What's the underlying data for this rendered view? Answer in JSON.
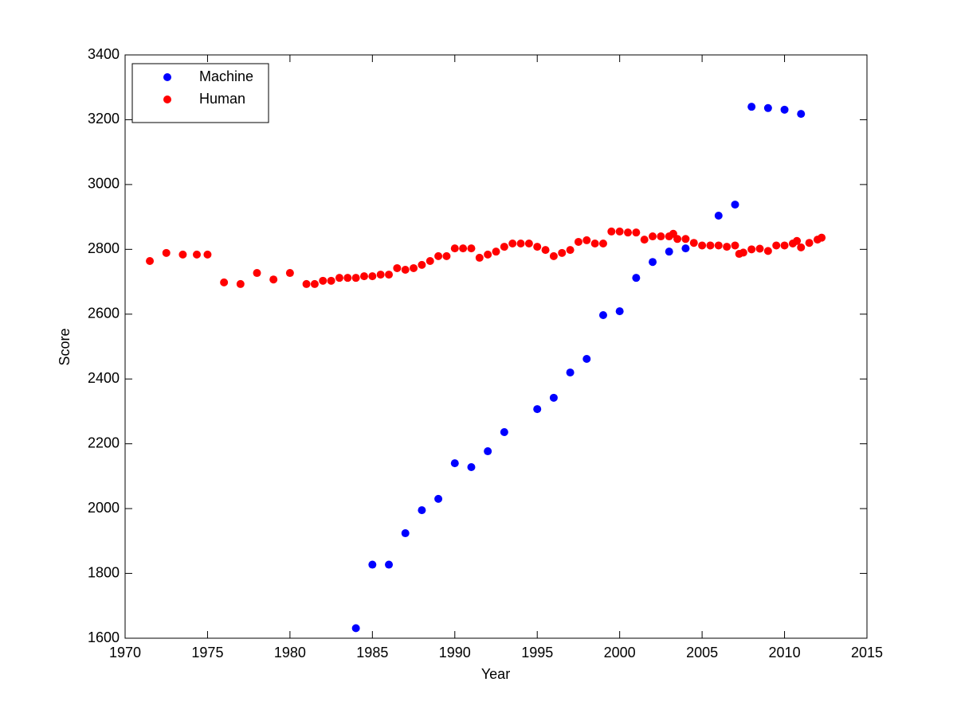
{
  "chart_data": {
    "type": "scatter",
    "xlabel": "Year",
    "ylabel": "Score",
    "xlim": [
      1970,
      2015
    ],
    "xticks": [
      1970,
      1975,
      1980,
      1985,
      1990,
      1995,
      2000,
      2005,
      2010,
      2015
    ],
    "ylim": [
      1600,
      3400
    ],
    "yticks": [
      1600,
      1800,
      2000,
      2200,
      2400,
      2600,
      2800,
      3000,
      3200,
      3400
    ],
    "legend": "upper left",
    "series": [
      {
        "name": "Machine",
        "color": "#0000ff",
        "x": [
          1984,
          1985,
          1986,
          1987,
          1988,
          1989,
          1990,
          1991,
          1992,
          1993,
          1995,
          1996,
          1997,
          1998,
          1999,
          2000,
          2001,
          2002,
          2003,
          2004,
          2006,
          2007,
          2008,
          2009,
          2010,
          2011
        ],
        "values": [
          1631,
          1827,
          1827,
          1924,
          1995,
          2030,
          2140,
          2128,
          2177,
          2236,
          2307,
          2342,
          2420,
          2462,
          2597,
          2609,
          2712,
          2761,
          2793,
          2803,
          2904,
          2938,
          3240,
          3236,
          3231,
          3218
        ]
      },
      {
        "name": "Human",
        "color": "#ff0000",
        "x": [
          1971.5,
          1972.5,
          1973.5,
          1974.35,
          1975,
          1976,
          1977,
          1978,
          1979,
          1980,
          1981,
          1981.5,
          1982,
          1982.5,
          1983,
          1983.5,
          1984,
          1984.5,
          1985,
          1985.5,
          1986,
          1986.5,
          1987,
          1987.5,
          1988,
          1988.5,
          1989,
          1989.5,
          1990,
          1990.5,
          1991,
          1991.5,
          1992,
          1992.5,
          1993,
          1993.5,
          1994,
          1994.5,
          1995,
          1995.5,
          1996,
          1996.5,
          1997,
          1997.5,
          1998,
          1998.5,
          1999,
          1999.5,
          2000,
          2000.5,
          2001,
          2001.5,
          2002,
          2002.5,
          2003,
          2003.25,
          2003.5,
          2004,
          2004.5,
          2005,
          2005.5,
          2006,
          2006.5,
          2007,
          2007.25,
          2007.5,
          2008,
          2008.5,
          2009,
          2009.5,
          2010,
          2010.5,
          2010.75,
          2011,
          2011.5,
          2012,
          2012.25
        ],
        "values": [
          2764,
          2789,
          2784,
          2784,
          2784,
          2698,
          2693,
          2727,
          2707,
          2727,
          2693,
          2693,
          2703,
          2703,
          2712,
          2712,
          2712,
          2717,
          2717,
          2722,
          2722,
          2742,
          2737,
          2742,
          2752,
          2764,
          2779,
          2779,
          2803,
          2803,
          2803,
          2774,
          2784,
          2793,
          2808,
          2818,
          2818,
          2818,
          2808,
          2798,
          2779,
          2789,
          2798,
          2823,
          2828,
          2818,
          2818,
          2855,
          2855,
          2852,
          2852,
          2830,
          2840,
          2840,
          2840,
          2848,
          2832,
          2832,
          2820,
          2812,
          2812,
          2812,
          2808,
          2812,
          2786,
          2790,
          2800,
          2802,
          2795,
          2812,
          2812,
          2818,
          2826,
          2806,
          2820,
          2830,
          2836
        ]
      }
    ]
  }
}
